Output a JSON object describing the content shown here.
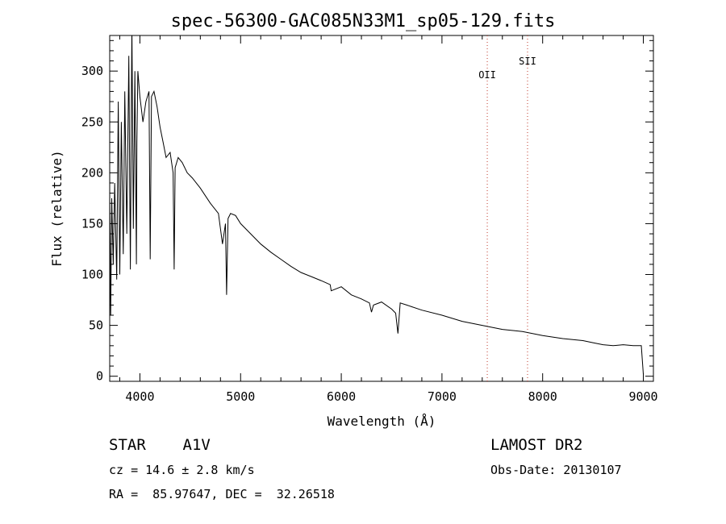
{
  "chart_data": {
    "type": "line",
    "title": "spec-56300-GAC085N33M1_sp05-129.fits",
    "xlabel": "Wavelength (Å)",
    "ylabel": "Flux (relative)",
    "xlim": [
      3700,
      9100
    ],
    "ylim": [
      -5,
      335
    ],
    "xticks": [
      4000,
      5000,
      6000,
      7000,
      8000,
      9000
    ],
    "yticks": [
      0,
      50,
      100,
      150,
      200,
      250,
      300
    ],
    "grid": false,
    "legend": "none",
    "series": [
      {
        "x": [
          3700,
          3710,
          3720,
          3735,
          3750,
          3770,
          3785,
          3800,
          3815,
          3835,
          3850,
          3870,
          3890,
          3905,
          3920,
          3935,
          3950,
          3965,
          3970,
          3980,
          4000,
          4030,
          4060,
          4090,
          4102,
          4115,
          4140,
          4170,
          4200,
          4230,
          4260,
          4300,
          4330,
          4340,
          4350,
          4380,
          4420,
          4470,
          4520,
          4600,
          4700,
          4780,
          4820,
          4850,
          4861,
          4875,
          4900,
          4950,
          5000,
          5100,
          5200,
          5300,
          5400,
          5500,
          5600,
          5700,
          5800,
          5890,
          5900,
          6000,
          6100,
          6200,
          6280,
          6300,
          6320,
          6400,
          6500,
          6540,
          6563,
          6585,
          6650,
          6800,
          7000,
          7200,
          7400,
          7600,
          7800,
          8000,
          8200,
          8400,
          8500,
          8600,
          8700,
          8800,
          8900,
          8980,
          9000
        ],
        "values": [
          180,
          60,
          175,
          110,
          190,
          95,
          270,
          100,
          250,
          120,
          280,
          140,
          315,
          105,
          345,
          145,
          300,
          110,
          230,
          300,
          275,
          250,
          270,
          280,
          115,
          275,
          280,
          265,
          245,
          230,
          215,
          220,
          200,
          105,
          205,
          215,
          210,
          200,
          195,
          185,
          170,
          160,
          130,
          150,
          80,
          155,
          160,
          158,
          150,
          140,
          130,
          122,
          115,
          108,
          102,
          98,
          94,
          90,
          84,
          88,
          80,
          76,
          72,
          63,
          70,
          73,
          66,
          62,
          42,
          72,
          70,
          65,
          60,
          54,
          50,
          46,
          44,
          40,
          37,
          35,
          33,
          31,
          30,
          31,
          30,
          30,
          2
        ]
      }
    ],
    "annotations": [
      {
        "label": "OII",
        "x": 7450
      },
      {
        "label": "SII",
        "x": 7850
      }
    ]
  },
  "info": {
    "class_text": "STAR    A1V",
    "survey_text": "LAMOST DR2",
    "cz_text": "cz = 14.6 ± 2.8 km/s",
    "obsdate_text": "Obs-Date: 20130107",
    "coords_text": "RA =  85.97647, DEC =  32.26518"
  }
}
